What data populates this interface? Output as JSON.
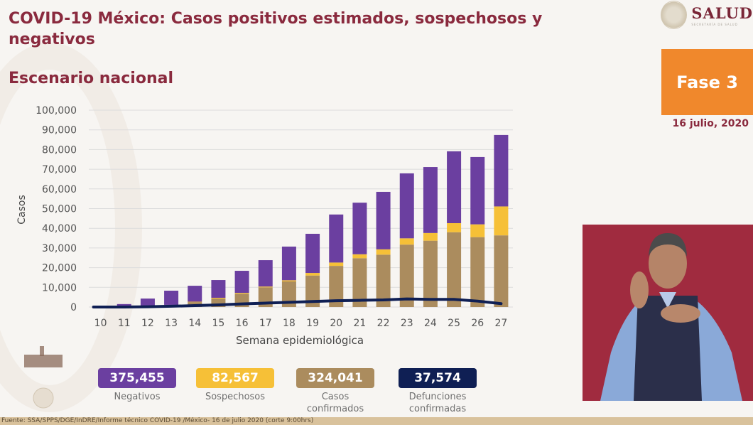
{
  "header": {
    "title": "COVID-19 México: Casos positivos estimados, sospechosos y negativos",
    "subtitle": "Escenario nacional",
    "logo_name": "SALUD",
    "logo_sub": "SECRETARÍA DE SALUD",
    "phase_label": "Fase 3",
    "date": "16 julio, 2020"
  },
  "colors": {
    "negativos": "#6b3fa0",
    "sospechosos": "#f6c037",
    "confirmados": "#ab8c5e",
    "defunciones": "#0f1f54",
    "title": "#8a2a3e",
    "phase_bg": "#f0882c"
  },
  "chart_data": {
    "type": "bar",
    "stacked": true,
    "title": "",
    "xlabel": "Semana epidemiológica",
    "ylabel": "Casos",
    "ylim": [
      0,
      100000
    ],
    "yticks": [
      0,
      10000,
      20000,
      30000,
      40000,
      50000,
      60000,
      70000,
      80000,
      90000,
      100000
    ],
    "ytick_labels": [
      "0",
      "10,000",
      "20,000",
      "30,000",
      "40,000",
      "50,000",
      "60,000",
      "70,000",
      "80,000",
      "90,000",
      "100,000"
    ],
    "grid": true,
    "categories": [
      "10",
      "11",
      "12",
      "13",
      "14",
      "15",
      "16",
      "17",
      "18",
      "19",
      "20",
      "21",
      "22",
      "23",
      "24",
      "25",
      "26",
      "27"
    ],
    "series": [
      {
        "name": "Casos confirmados",
        "key": "confirmados",
        "values": [
          0,
          50,
          300,
          1000,
          2500,
          4300,
          6800,
          10000,
          13000,
          16000,
          20900,
          24800,
          26600,
          31700,
          33700,
          38000,
          35500,
          36400
        ]
      },
      {
        "name": "Sospechosos",
        "key": "sospechosos",
        "values": [
          0,
          0,
          0,
          100,
          200,
          400,
          400,
          400,
          600,
          1300,
          1700,
          2000,
          2700,
          3200,
          3900,
          4600,
          6500,
          14700
        ]
      },
      {
        "name": "Negativos",
        "key": "negativos",
        "values": [
          100,
          1450,
          4000,
          7200,
          8100,
          9000,
          11200,
          13400,
          17100,
          19900,
          24400,
          26200,
          29200,
          33000,
          33500,
          36500,
          34200,
          36300
        ]
      }
    ],
    "line_series": {
      "name": "Defunciones confirmadas",
      "key": "defunciones",
      "values": [
        0,
        20,
        150,
        400,
        700,
        1100,
        1600,
        2000,
        2400,
        2800,
        3200,
        3400,
        3600,
        4100,
        3900,
        3900,
        3000,
        1700
      ]
    }
  },
  "legend": [
    {
      "key": "negativos",
      "value": "375,455",
      "label": "Negativos"
    },
    {
      "key": "sospechosos",
      "value": "82,567",
      "label": "Sospechosos"
    },
    {
      "key": "confirmados",
      "value": "324,041",
      "label": "Casos confirmados"
    },
    {
      "key": "defunciones",
      "value": "37,574",
      "label": "Defunciones confirmadas"
    }
  ],
  "footer": "Fuente: SSA/SPPS/DGE/InDRE/Informe técnico COVID-19 /México- 16 de julio 2020 (corte 9:00hrs)"
}
